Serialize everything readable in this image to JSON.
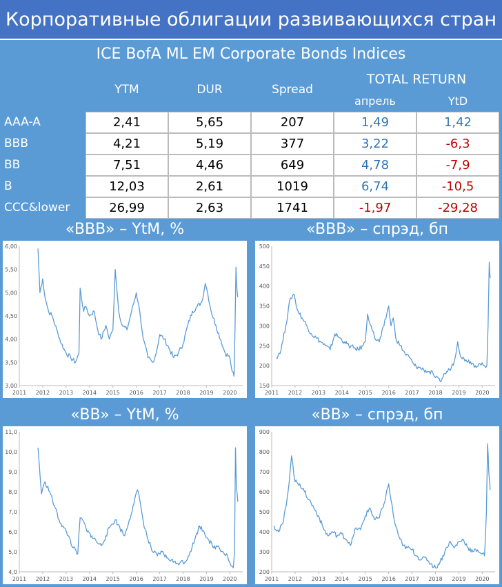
{
  "header": {
    "title": "Корпоративные облигации развивающихся стран",
    "subtitle": "ICE BofA ML EM Corporate Bonds Indices"
  },
  "table": {
    "columns": {
      "ytm": "YTM",
      "dur": "DUR",
      "spread": "Spread",
      "total_return": "TOTAL RETURN",
      "april": "апрель",
      "ytd": "YtD"
    },
    "rows": [
      {
        "label": "AAA-A",
        "ytm": "2,41",
        "dur": "5,65",
        "spread": "207",
        "april": "1,49",
        "ytd": "1,42"
      },
      {
        "label": "BBB",
        "ytm": "4,21",
        "dur": "5,19",
        "spread": "377",
        "april": "3,22",
        "ytd": "-6,3"
      },
      {
        "label": "BB",
        "ytm": "7,51",
        "dur": "4,46",
        "spread": "649",
        "april": "4,78",
        "ytd": "-7,9"
      },
      {
        "label": "B",
        "ytm": "12,03",
        "dur": "2,61",
        "spread": "1019",
        "april": "6,74",
        "ytd": "-10,5"
      },
      {
        "label": "CCC&lower",
        "ytm": "26,99",
        "dur": "2,63",
        "spread": "1741",
        "april": "-1,97",
        "ytd": "-29,28"
      }
    ]
  },
  "colors": {
    "positive": "#2e75b6",
    "negative": "#c00000",
    "line": "#5b9bd5",
    "background": "#5b9bd5",
    "title_bg": "#4472c4"
  },
  "chart_data": [
    {
      "type": "line",
      "title": "«BBB» – YtM, %",
      "x_ticks": [
        "2011",
        "2012",
        "2013",
        "2014",
        "2015",
        "2016",
        "2017",
        "2018",
        "2019",
        "2020"
      ],
      "y_ticks": [
        "3,00",
        "3,50",
        "4,00",
        "4,50",
        "5,00",
        "5,50",
        "6,00"
      ],
      "xlim": [
        2011,
        2020.55
      ],
      "ylim": [
        3.0,
        6.0
      ],
      "x": [
        2011.8,
        2011.88,
        2012.0,
        2012.1,
        2012.25,
        2012.4,
        2012.6,
        2012.8,
        2013.0,
        2013.2,
        2013.4,
        2013.55,
        2013.6,
        2013.75,
        2013.85,
        2014.0,
        2014.2,
        2014.35,
        2014.5,
        2014.7,
        2014.85,
        2015.0,
        2015.1,
        2015.25,
        2015.4,
        2015.6,
        2015.8,
        2016.0,
        2016.15,
        2016.3,
        2016.5,
        2016.7,
        2016.85,
        2017.0,
        2017.2,
        2017.4,
        2017.6,
        2017.8,
        2018.0,
        2018.2,
        2018.4,
        2018.6,
        2018.8,
        2018.95,
        2019.05,
        2019.2,
        2019.4,
        2019.6,
        2019.8,
        2020.0,
        2020.1,
        2020.18,
        2020.22,
        2020.26,
        2020.3,
        2020.34
      ],
      "y": [
        5.95,
        5.0,
        5.3,
        4.9,
        4.6,
        4.5,
        4.2,
        3.9,
        3.7,
        3.6,
        3.5,
        3.7,
        5.1,
        4.6,
        4.7,
        4.5,
        4.6,
        4.2,
        4.0,
        4.3,
        4.0,
        4.2,
        5.5,
        4.6,
        4.3,
        4.2,
        4.6,
        5.0,
        4.6,
        4.0,
        3.6,
        3.5,
        3.7,
        4.1,
        4.0,
        3.8,
        3.6,
        3.7,
        3.9,
        4.3,
        4.6,
        4.7,
        4.8,
        5.2,
        5.0,
        4.6,
        4.3,
        4.0,
        3.7,
        3.6,
        3.3,
        3.2,
        4.2,
        5.55,
        5.1,
        4.9
      ]
    },
    {
      "type": "line",
      "title": "«BBB» – спрэд, бп",
      "x_ticks": [
        "2011",
        "2012",
        "2013",
        "2014",
        "2015",
        "2016",
        "2017",
        "2018",
        "2019",
        "2020"
      ],
      "y_ticks": [
        "150",
        "200",
        "250",
        "300",
        "350",
        "400",
        "450",
        "500"
      ],
      "xlim": [
        2011,
        2020.55
      ],
      "ylim": [
        150,
        500
      ],
      "x": [
        2011.2,
        2011.4,
        2011.6,
        2011.8,
        2011.95,
        2012.1,
        2012.3,
        2012.5,
        2012.7,
        2012.9,
        2013.1,
        2013.3,
        2013.5,
        2013.7,
        2013.9,
        2014.1,
        2014.3,
        2014.5,
        2014.7,
        2014.9,
        2015.0,
        2015.1,
        2015.25,
        2015.4,
        2015.6,
        2015.8,
        2016.0,
        2016.1,
        2016.2,
        2016.3,
        2016.5,
        2016.7,
        2016.9,
        2017.1,
        2017.3,
        2017.5,
        2017.7,
        2017.9,
        2018.0,
        2018.2,
        2018.4,
        2018.6,
        2018.8,
        2018.95,
        2019.1,
        2019.3,
        2019.5,
        2019.7,
        2019.9,
        2020.05,
        2020.15,
        2020.2,
        2020.25,
        2020.3,
        2020.34
      ],
      "y": [
        220,
        240,
        300,
        370,
        380,
        340,
        320,
        300,
        280,
        270,
        260,
        250,
        240,
        280,
        270,
        260,
        250,
        245,
        240,
        250,
        260,
        330,
        300,
        270,
        260,
        300,
        350,
        300,
        320,
        270,
        250,
        230,
        220,
        200,
        195,
        190,
        185,
        180,
        170,
        160,
        180,
        190,
        210,
        260,
        220,
        215,
        210,
        200,
        205,
        200,
        195,
        200,
        300,
        460,
        420
      ]
    },
    {
      "type": "line",
      "title": "«BB» – YtM, %",
      "x_ticks": [
        "2011",
        "2012",
        "2013",
        "2014",
        "2015",
        "2016",
        "2017",
        "2018",
        "2019",
        "2020"
      ],
      "y_ticks": [
        "4,0",
        "5,0",
        "6,0",
        "7,0",
        "8,0",
        "9,0",
        "10,0",
        "11,0"
      ],
      "xlim": [
        2011,
        2020.55
      ],
      "ylim": [
        4.0,
        11.0
      ],
      "x": [
        2011.8,
        2011.95,
        2012.1,
        2012.3,
        2012.5,
        2012.7,
        2012.9,
        2013.1,
        2013.3,
        2013.5,
        2013.6,
        2013.75,
        2013.9,
        2014.1,
        2014.3,
        2014.5,
        2014.7,
        2014.9,
        2015.1,
        2015.3,
        2015.5,
        2015.7,
        2015.9,
        2016.05,
        2016.15,
        2016.3,
        2016.5,
        2016.7,
        2016.9,
        2017.1,
        2017.3,
        2017.5,
        2017.7,
        2017.9,
        2018.1,
        2018.3,
        2018.5,
        2018.7,
        2018.9,
        2019.1,
        2019.3,
        2019.5,
        2019.7,
        2019.9,
        2020.05,
        2020.15,
        2020.2,
        2020.24,
        2020.28,
        2020.34
      ],
      "y": [
        10.2,
        7.9,
        8.5,
        8.0,
        7.3,
        6.6,
        6.2,
        5.8,
        5.2,
        4.9,
        6.7,
        6.5,
        6.0,
        5.8,
        5.5,
        5.3,
        5.8,
        6.3,
        6.6,
        6.2,
        5.8,
        6.6,
        7.4,
        8.1,
        7.6,
        6.5,
        5.6,
        5.0,
        4.8,
        5.0,
        4.7,
        4.6,
        4.4,
        4.5,
        4.5,
        5.0,
        5.6,
        6.3,
        6.0,
        5.6,
        5.2,
        5.3,
        5.0,
        4.8,
        4.3,
        4.2,
        5.0,
        10.2,
        8.2,
        7.5
      ]
    },
    {
      "type": "line",
      "title": "«BB» – спрэд, бп",
      "x_ticks": [
        "2011",
        "2012",
        "2013",
        "2014",
        "2015",
        "2016",
        "2017",
        "2018",
        "2019",
        "2020"
      ],
      "y_ticks": [
        "200",
        "300",
        "400",
        "500",
        "600",
        "700",
        "800",
        "900"
      ],
      "xlim": [
        2011,
        2020.55
      ],
      "ylim": [
        200,
        900
      ],
      "x": [
        2011.1,
        2011.3,
        2011.5,
        2011.7,
        2011.85,
        2012.0,
        2012.2,
        2012.4,
        2012.6,
        2012.8,
        2013.0,
        2013.2,
        2013.4,
        2013.6,
        2013.8,
        2014.0,
        2014.2,
        2014.4,
        2014.6,
        2014.8,
        2015.0,
        2015.2,
        2015.4,
        2015.6,
        2015.8,
        2016.0,
        2016.1,
        2016.25,
        2016.4,
        2016.6,
        2016.8,
        2017.0,
        2017.2,
        2017.4,
        2017.6,
        2017.8,
        2018.0,
        2018.2,
        2018.4,
        2018.6,
        2018.8,
        2019.0,
        2019.2,
        2019.4,
        2019.6,
        2019.8,
        2020.0,
        2020.1,
        2020.18,
        2020.23,
        2020.28,
        2020.34
      ],
      "y": [
        430,
        400,
        450,
        600,
        780,
        650,
        640,
        600,
        560,
        520,
        480,
        420,
        380,
        400,
        380,
        390,
        360,
        340,
        420,
        410,
        480,
        520,
        460,
        470,
        540,
        640,
        560,
        450,
        390,
        330,
        320,
        310,
        280,
        260,
        270,
        240,
        220,
        250,
        300,
        350,
        320,
        350,
        360,
        320,
        300,
        310,
        290,
        280,
        500,
        840,
        700,
        610
      ]
    }
  ]
}
